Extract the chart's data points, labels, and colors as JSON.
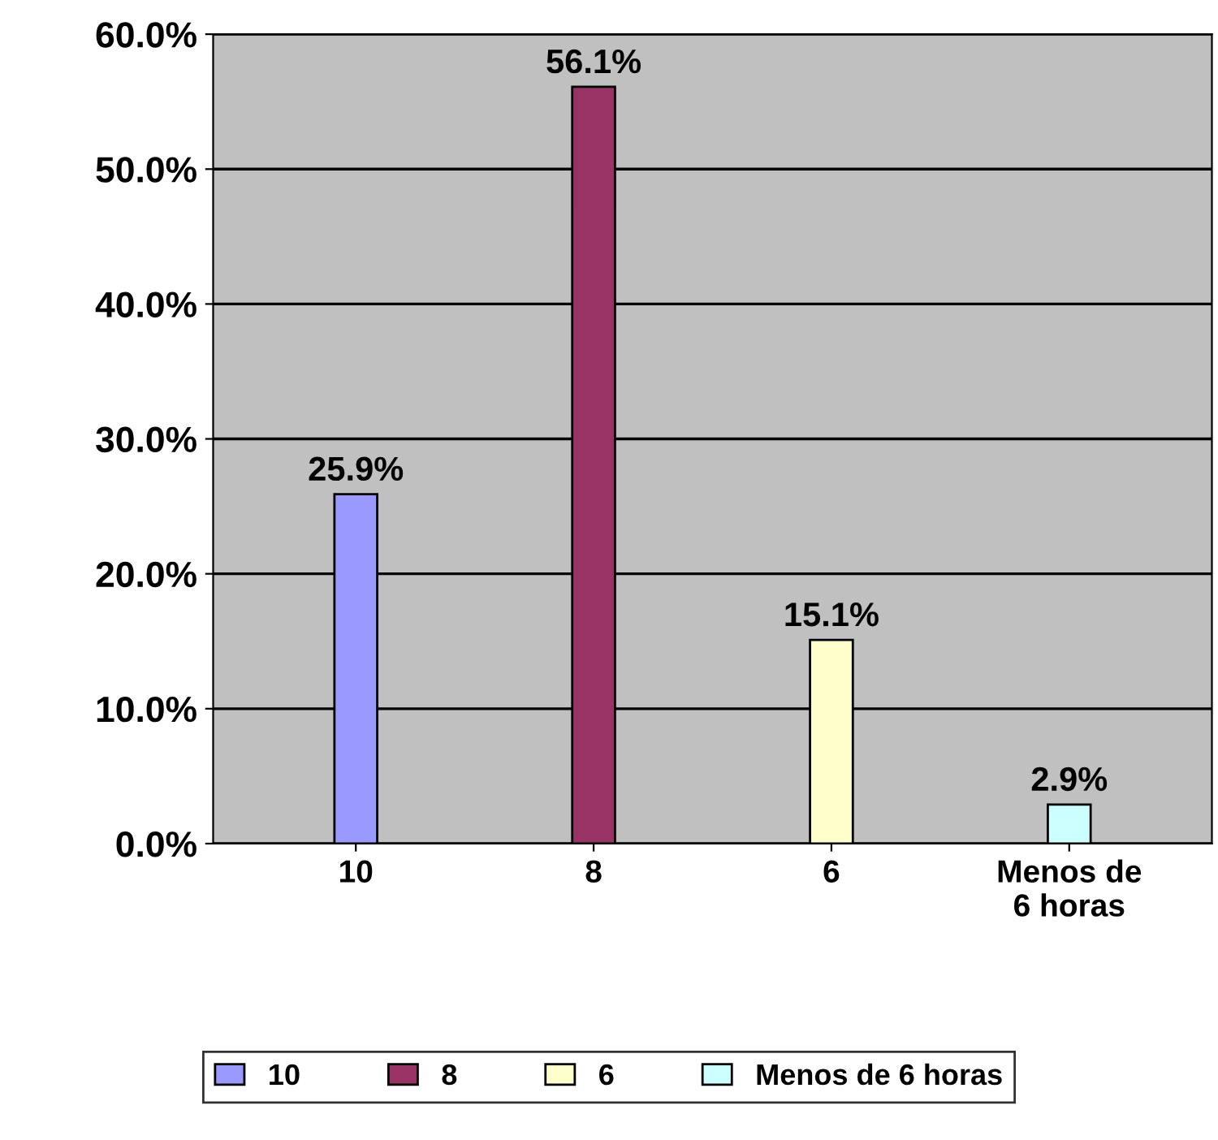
{
  "chart_data": {
    "type": "bar",
    "categories": [
      "10",
      "8",
      "6",
      "Menos de\n6 horas"
    ],
    "series": [
      {
        "name": "10",
        "color": "#9999ff",
        "values": [
          25.9,
          null,
          null,
          null
        ],
        "value_labels": [
          "25.9%",
          null,
          null,
          null
        ]
      },
      {
        "name": "8",
        "color": "#993366",
        "values": [
          null,
          56.1,
          null,
          null
        ],
        "value_labels": [
          null,
          "56.1%",
          null,
          null
        ]
      },
      {
        "name": "6",
        "color": "#ffffcc",
        "values": [
          null,
          null,
          15.1,
          null
        ],
        "value_labels": [
          null,
          null,
          "15.1%",
          null
        ]
      },
      {
        "name": "Menos de 6 horas",
        "color": "#ccffff",
        "values": [
          null,
          null,
          null,
          2.9
        ],
        "value_labels": [
          null,
          null,
          null,
          "2.9%"
        ]
      }
    ],
    "ylim": [
      0,
      60
    ],
    "yticks": [
      {
        "value": 0,
        "label": "0.0%"
      },
      {
        "value": 10,
        "label": "10.0%"
      },
      {
        "value": 20,
        "label": "20.0%"
      },
      {
        "value": 30,
        "label": "30.0%"
      },
      {
        "value": 40,
        "label": "40.0%"
      },
      {
        "value": 50,
        "label": "50.0%"
      },
      {
        "value": 60,
        "label": "60.0%"
      }
    ],
    "grid": "y",
    "legend": "bottom"
  }
}
